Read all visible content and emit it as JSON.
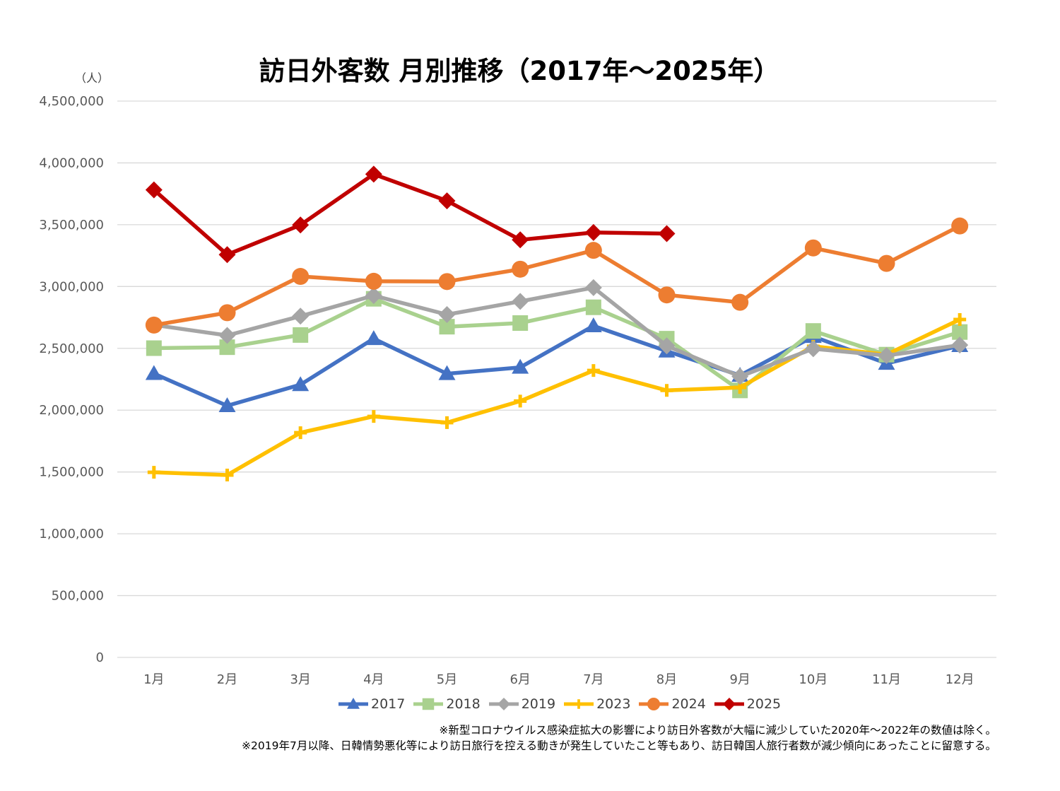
{
  "chart_data": {
    "type": "line",
    "title": "訪日外客数 月別推移（2017年～2025年）",
    "ylabel": "（人）",
    "xlabel": "",
    "ylim": [
      0,
      4500000
    ],
    "yticks": [
      0,
      500000,
      1000000,
      1500000,
      2000000,
      2500000,
      3000000,
      3500000,
      4000000,
      4500000
    ],
    "ytick_labels": [
      "0",
      "500,000",
      "1,000,000",
      "1,500,000",
      "2,000,000",
      "2,500,000",
      "3,000,000",
      "3,500,000",
      "4,000,000",
      "4,500,000"
    ],
    "categories": [
      "1月",
      "2月",
      "3月",
      "4月",
      "5月",
      "6月",
      "7月",
      "8月",
      "9月",
      "10月",
      "11月",
      "12月"
    ],
    "grid": true,
    "legend_position": "bottom",
    "series": [
      {
        "name": "2017",
        "color": "#4472C4",
        "marker": "triangle",
        "values": [
          2295700,
          2035800,
          2205700,
          2578000,
          2294700,
          2346300,
          2681600,
          2477400,
          2280900,
          2595200,
          2378100,
          2521300
        ]
      },
      {
        "name": "2018",
        "color": "#A9D18E",
        "marker": "square",
        "values": [
          2501400,
          2509300,
          2607900,
          2900700,
          2675100,
          2704600,
          2832000,
          2578000,
          2159600,
          2640600,
          2449000,
          2632000
        ]
      },
      {
        "name": "2019",
        "color": "#A5A5A5",
        "marker": "diamond",
        "values": [
          2689300,
          2604300,
          2760100,
          2926700,
          2773100,
          2880000,
          2991200,
          2520100,
          2272900,
          2496600,
          2441300,
          2526400
        ]
      },
      {
        "name": "2023",
        "color": "#FFC000",
        "marker": "cross",
        "values": [
          1497300,
          1475300,
          1817900,
          1949200,
          1898900,
          2073300,
          2320600,
          2159600,
          2183400,
          2516500,
          2449800,
          2733300
        ]
      },
      {
        "name": "2024",
        "color": "#ED7D31",
        "marker": "circle",
        "values": [
          2688100,
          2788200,
          3081800,
          3042500,
          3040100,
          3140000,
          3292600,
          2932000,
          2872200,
          3312000,
          3187000,
          3489800
        ]
      },
      {
        "name": "2025",
        "color": "#C00000",
        "marker": "diamond",
        "values": [
          3781600,
          3258100,
          3497600,
          3908900,
          3693300,
          3377800,
          3437000,
          3428000,
          null,
          null,
          null,
          null
        ]
      }
    ]
  },
  "notes": [
    "※新型コロナウイルス感染症拡大の影響により訪日外客数が大幅に減少していた2020年～2022年の数値は除く。",
    "※2019年7月以降、日韓情勢悪化等により訪日旅行を控える動きが発生していたこと等もあり、訪日韓国人旅行者数が減少傾向にあったことに留意する。"
  ]
}
